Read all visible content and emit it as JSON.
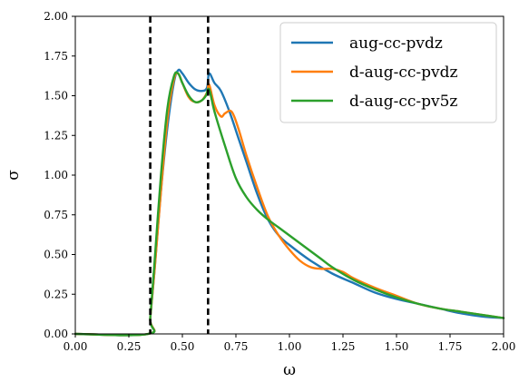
{
  "chart_data": {
    "type": "line",
    "title": "",
    "xlabel": "ω",
    "ylabel": "σ",
    "xlim": [
      0.0,
      2.0
    ],
    "ylim": [
      0.0,
      2.0
    ],
    "xticks": [
      "0.00",
      "0.25",
      "0.50",
      "0.75",
      "1.00",
      "1.25",
      "1.50",
      "1.75",
      "2.00"
    ],
    "yticks": [
      "0.00",
      "0.25",
      "0.50",
      "0.75",
      "1.00",
      "1.25",
      "1.50",
      "1.75",
      "2.00"
    ],
    "grid": false,
    "legend_position": "top-right",
    "vlines": [
      {
        "x": 0.35,
        "style": "dashed",
        "color": "#000000"
      },
      {
        "x": 0.62,
        "style": "dashed",
        "color": "#000000"
      }
    ],
    "series": [
      {
        "name": "aug-cc-pvdz",
        "color": "#1f77b4",
        "x": [
          0.0,
          0.34,
          0.35,
          0.37,
          0.4,
          0.43,
          0.46,
          0.48,
          0.5,
          0.53,
          0.56,
          0.59,
          0.615,
          0.625,
          0.65,
          0.68,
          0.72,
          0.76,
          0.8,
          0.85,
          0.9,
          0.95,
          1.0,
          1.1,
          1.2,
          1.3,
          1.4,
          1.5,
          1.6,
          1.7,
          1.8,
          1.9,
          2.0
        ],
        "y": [
          0.0,
          0.0,
          0.1,
          0.4,
          0.9,
          1.3,
          1.58,
          1.66,
          1.64,
          1.58,
          1.54,
          1.53,
          1.55,
          1.64,
          1.58,
          1.53,
          1.4,
          1.24,
          1.08,
          0.88,
          0.72,
          0.62,
          0.56,
          0.46,
          0.38,
          0.32,
          0.26,
          0.22,
          0.19,
          0.16,
          0.13,
          0.11,
          0.1
        ]
      },
      {
        "name": "d-aug-cc-pvdz",
        "color": "#ff7f0e",
        "x": [
          0.0,
          0.34,
          0.35,
          0.37,
          0.4,
          0.43,
          0.46,
          0.48,
          0.5,
          0.53,
          0.56,
          0.59,
          0.615,
          0.625,
          0.65,
          0.68,
          0.7,
          0.73,
          0.76,
          0.8,
          0.85,
          0.9,
          0.95,
          1.0,
          1.05,
          1.1,
          1.15,
          1.2,
          1.25,
          1.3,
          1.4,
          1.5,
          1.6,
          1.7,
          1.8,
          1.9,
          2.0
        ],
        "y": [
          0.0,
          0.0,
          0.1,
          0.4,
          0.9,
          1.35,
          1.6,
          1.64,
          1.58,
          1.49,
          1.46,
          1.47,
          1.52,
          1.57,
          1.44,
          1.37,
          1.39,
          1.4,
          1.3,
          1.12,
          0.92,
          0.74,
          0.62,
          0.53,
          0.46,
          0.42,
          0.41,
          0.41,
          0.39,
          0.35,
          0.29,
          0.24,
          0.19,
          0.16,
          0.14,
          0.12,
          0.1
        ]
      },
      {
        "name": "d-aug-cc-pv5z",
        "color": "#2ca02c",
        "x": [
          0.0,
          0.34,
          0.35,
          0.37,
          0.4,
          0.43,
          0.46,
          0.48,
          0.5,
          0.53,
          0.56,
          0.59,
          0.61,
          0.625,
          0.65,
          0.7,
          0.75,
          0.8,
          0.85,
          0.9,
          0.95,
          1.0,
          1.05,
          1.1,
          1.15,
          1.2,
          1.3,
          1.4,
          1.5,
          1.6,
          1.7,
          1.8,
          1.9,
          2.0
        ],
        "y": [
          0.0,
          0.0,
          0.1,
          0.45,
          1.0,
          1.42,
          1.62,
          1.64,
          1.58,
          1.5,
          1.46,
          1.47,
          1.5,
          1.54,
          1.4,
          1.18,
          0.98,
          0.86,
          0.78,
          0.72,
          0.67,
          0.62,
          0.57,
          0.52,
          0.47,
          0.42,
          0.34,
          0.28,
          0.23,
          0.19,
          0.16,
          0.14,
          0.12,
          0.1
        ]
      }
    ]
  }
}
